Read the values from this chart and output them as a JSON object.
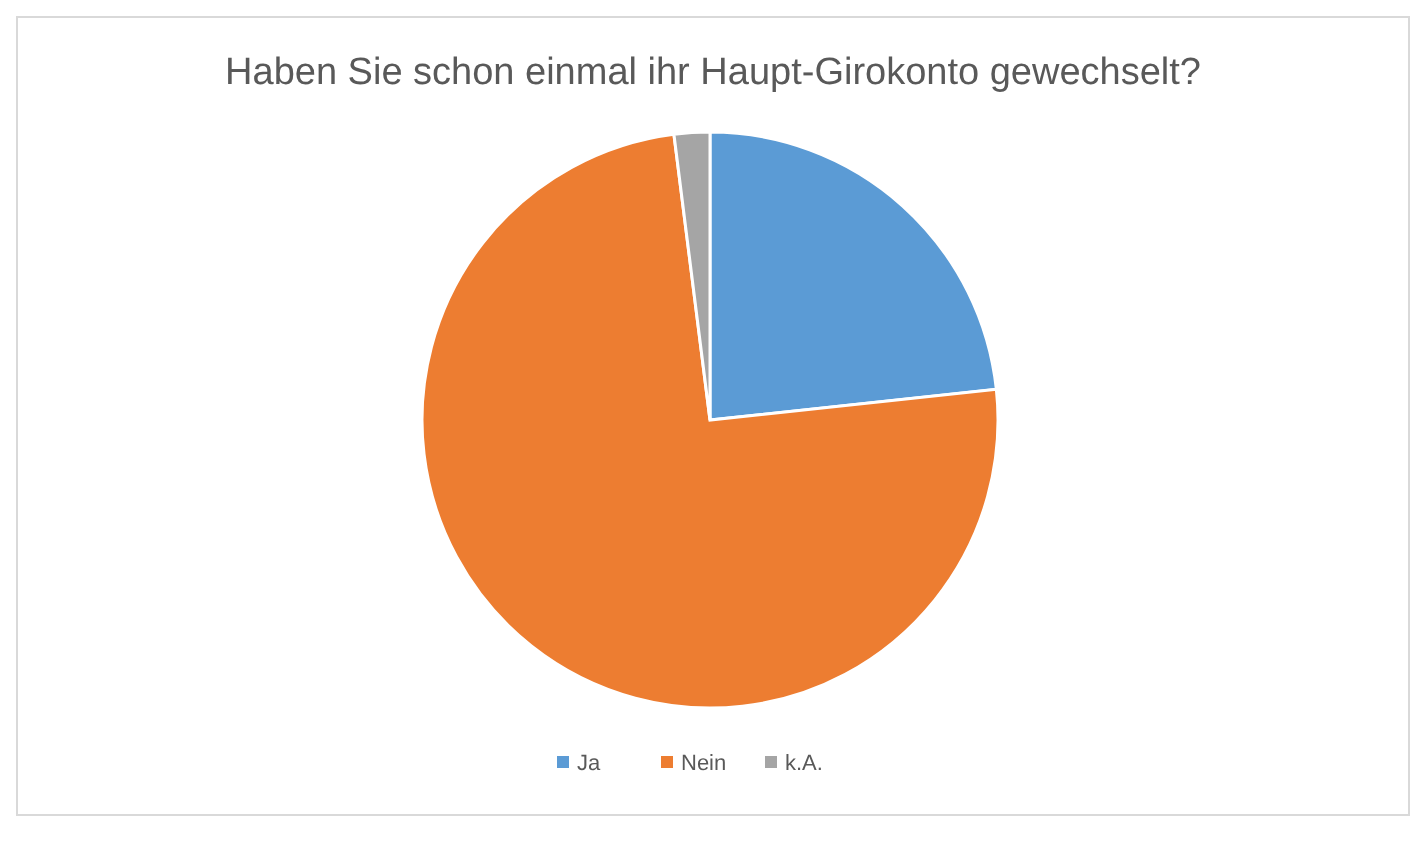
{
  "chart_data": {
    "type": "pie",
    "title": "Haben Sie schon einmal ihr Haupt-Girokonto gewechselt?",
    "categories": [
      "Ja",
      "Nein",
      "k.A."
    ],
    "values": [
      23.3,
      74.7,
      2.0
    ],
    "colors": [
      "#5b9bd5",
      "#ed7d31",
      "#a5a5a5"
    ],
    "legend": "bottom"
  }
}
